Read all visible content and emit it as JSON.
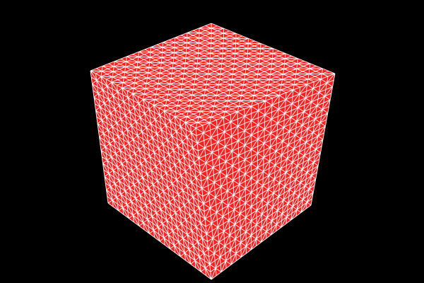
{
  "scene": {
    "object": "cube",
    "render_mode": "wireframe-over-solid",
    "subdivisions_per_edge": 20,
    "colors": {
      "background": "#000000",
      "face_fill": "#ff2020",
      "wire": "#ffffff"
    },
    "visible_faces": [
      "top",
      "left",
      "right"
    ]
  }
}
